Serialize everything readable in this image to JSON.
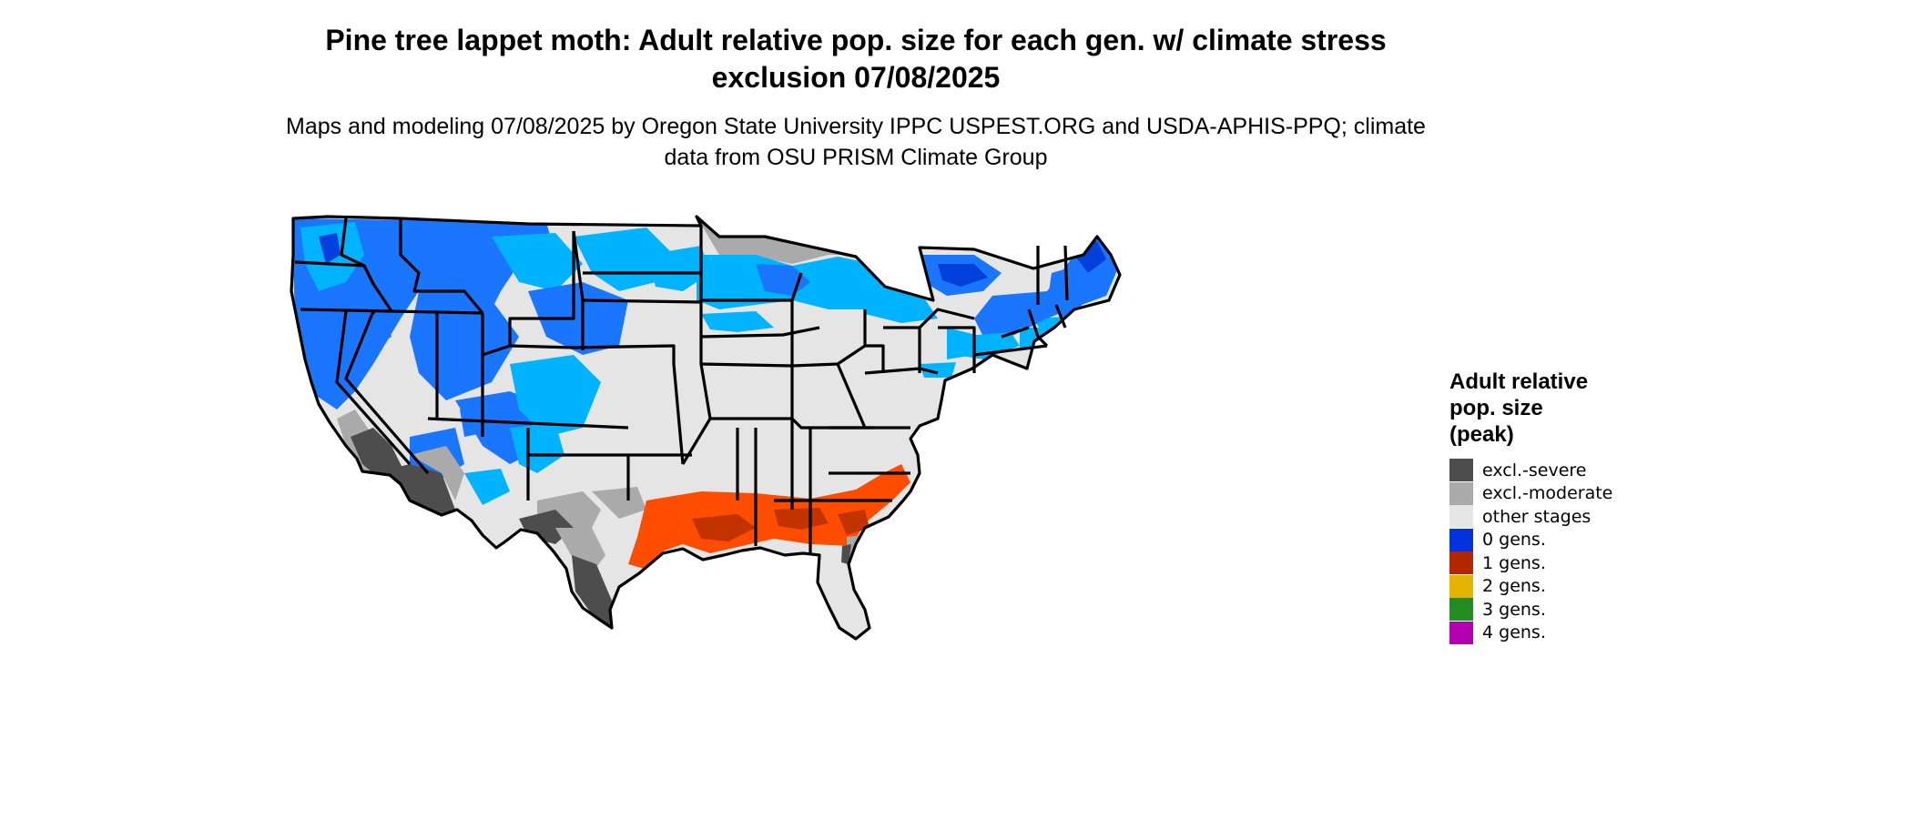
{
  "title": "Pine tree lappet moth: Adult relative pop. size for each gen. w/ climate stress exclusion 07/08/2025",
  "subtitle": "Maps and modeling 07/08/2025 by Oregon State University IPPC USPEST.ORG and USDA-APHIS-PPQ; climate data from OSU PRISM Climate Group",
  "legend": {
    "title_lines": [
      "Adult relative",
      "pop. size",
      "(peak)"
    ],
    "items": [
      {
        "label": "excl.-severe",
        "color": "#4d4d4d"
      },
      {
        "label": "excl.-moderate",
        "color": "#aaaaaa"
      },
      {
        "label": "other stages",
        "color": "#e5e5e5"
      },
      {
        "label": "0 gens.",
        "color": "#0033dd"
      },
      {
        "label": "1 gens.",
        "color": "#b32600"
      },
      {
        "label": "2 gens.",
        "color": "#e6b400"
      },
      {
        "label": "3 gens.",
        "color": "#228b22"
      },
      {
        "label": "4 gens.",
        "color": "#b300b3"
      }
    ]
  },
  "map_colors": {
    "land": "#e5e5e5",
    "blue_light": "#00b3ff",
    "blue_mid": "#1a75ff",
    "blue_dark": "#0040dd",
    "orange": "#ff4d00",
    "red_dark": "#c23300",
    "gray_mod": "#aaaaaa",
    "gray_sev": "#4d4d4d",
    "border": "#000000"
  }
}
